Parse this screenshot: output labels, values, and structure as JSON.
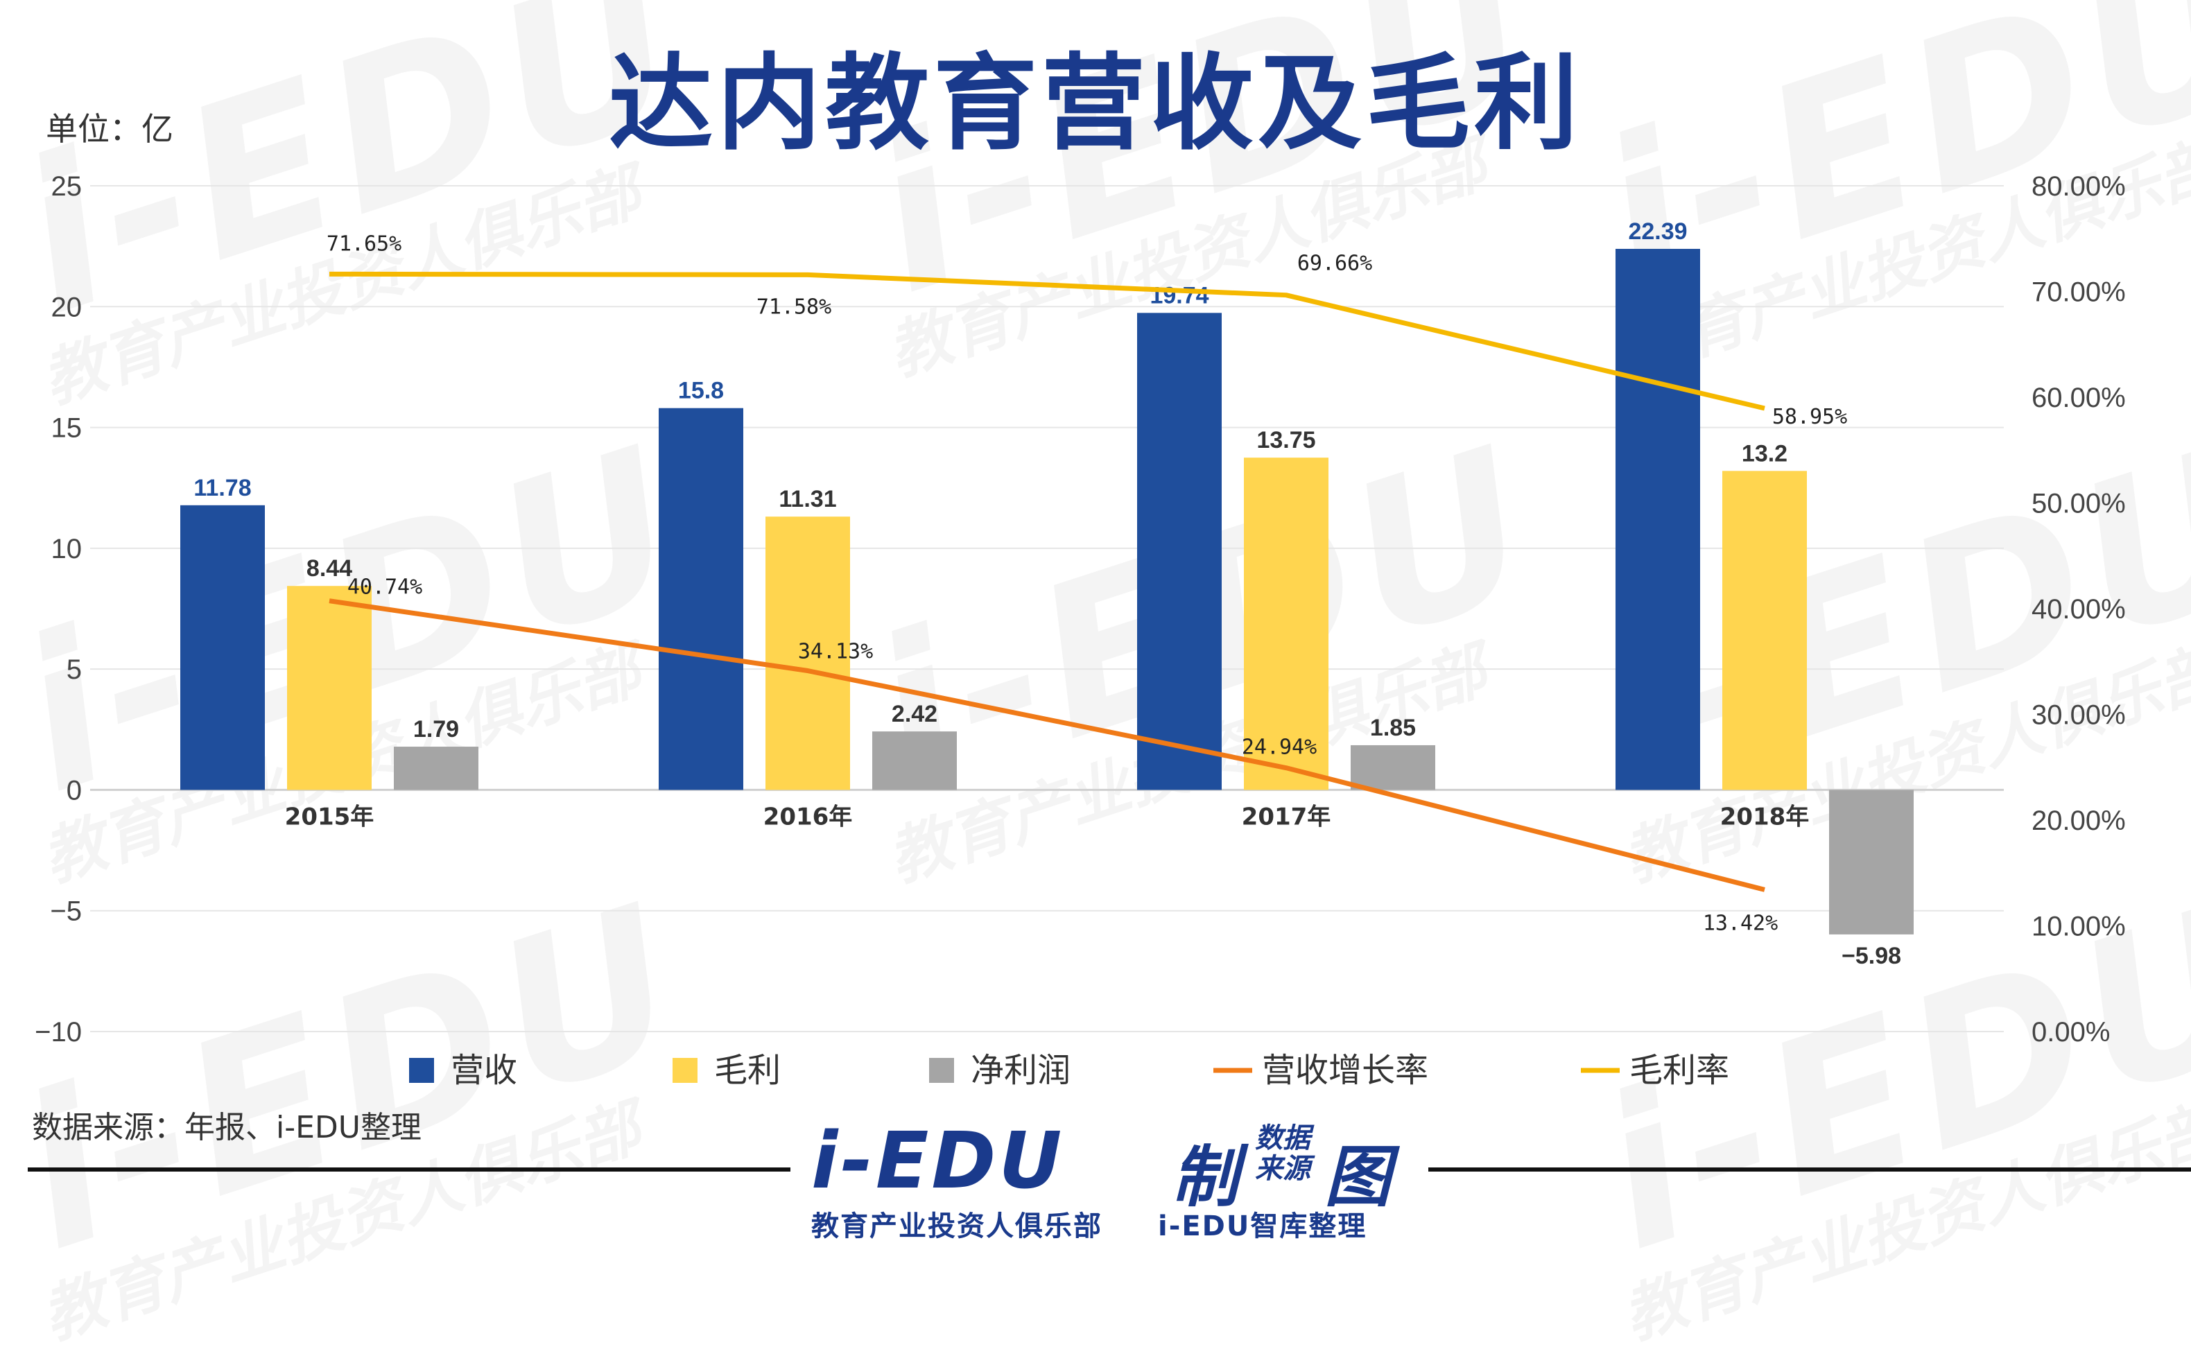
{
  "title": "达内教育营收及毛利",
  "unit_label": "单位：亿",
  "source": "数据来源：年报、i-EDU整理",
  "watermark": {
    "big": "i-EDU",
    "small": "教育产业投资人俱乐部"
  },
  "logo": {
    "main": "i-EDU",
    "zhi": "制",
    "shu": "数据来源",
    "tu": "图",
    "sub_left": "教育产业投资人俱乐部",
    "sub_right": "i-EDU智库整理"
  },
  "colors": {
    "revenue": "#1f4e9c",
    "gross_profit": "#ffd54f",
    "net_profit": "#a5a5a5",
    "revenue_growth": "#f07a17",
    "gross_margin": "#f5b800",
    "title": "#1a3a8c"
  },
  "chart_data": {
    "type": "bar",
    "categories": [
      "2015年",
      "2016年",
      "2017年",
      "2018年"
    ],
    "series": [
      {
        "name": "营收",
        "type": "bar",
        "axis": "left",
        "values": [
          11.78,
          15.8,
          19.74,
          22.39
        ],
        "labels": [
          "11.78",
          "15.8",
          "19.74",
          "22.39"
        ]
      },
      {
        "name": "毛利",
        "type": "bar",
        "axis": "left",
        "values": [
          8.44,
          11.31,
          13.75,
          13.2
        ],
        "labels": [
          "8.44",
          "11.31",
          "13.75",
          "13.2"
        ]
      },
      {
        "name": "净利润",
        "type": "bar",
        "axis": "left",
        "values": [
          1.79,
          2.42,
          1.85,
          -5.98
        ],
        "labels": [
          "1.79",
          "2.42",
          "1.85",
          "−5.98"
        ]
      },
      {
        "name": "营收增长率",
        "type": "line",
        "axis": "right",
        "values": [
          40.74,
          34.13,
          24.94,
          13.42
        ],
        "labels": [
          "40.74%",
          "34.13%",
          "24.94%",
          "13.42%"
        ]
      },
      {
        "name": "毛利率",
        "type": "line",
        "axis": "right",
        "values": [
          71.65,
          71.58,
          69.66,
          58.95
        ],
        "labels": [
          "71.65%",
          "71.58%",
          "69.66%",
          "58.95%"
        ]
      }
    ],
    "left_axis": {
      "ylim": [
        -10,
        25
      ],
      "ticks": [
        "25",
        "20",
        "15",
        "10",
        "5",
        "0",
        "−5",
        "−10"
      ],
      "tick_values": [
        25,
        20,
        15,
        10,
        5,
        0,
        -5,
        -10
      ]
    },
    "right_axis": {
      "ylim": [
        0,
        80
      ],
      "ticks": [
        "80.00%",
        "70.00%",
        "60.00%",
        "50.00%",
        "40.00%",
        "30.00%",
        "20.00%",
        "10.00%",
        "0.00%"
      ],
      "tick_values": [
        80,
        70,
        60,
        50,
        40,
        30,
        20,
        10,
        0
      ]
    },
    "grid": true,
    "legend_position": "bottom"
  }
}
